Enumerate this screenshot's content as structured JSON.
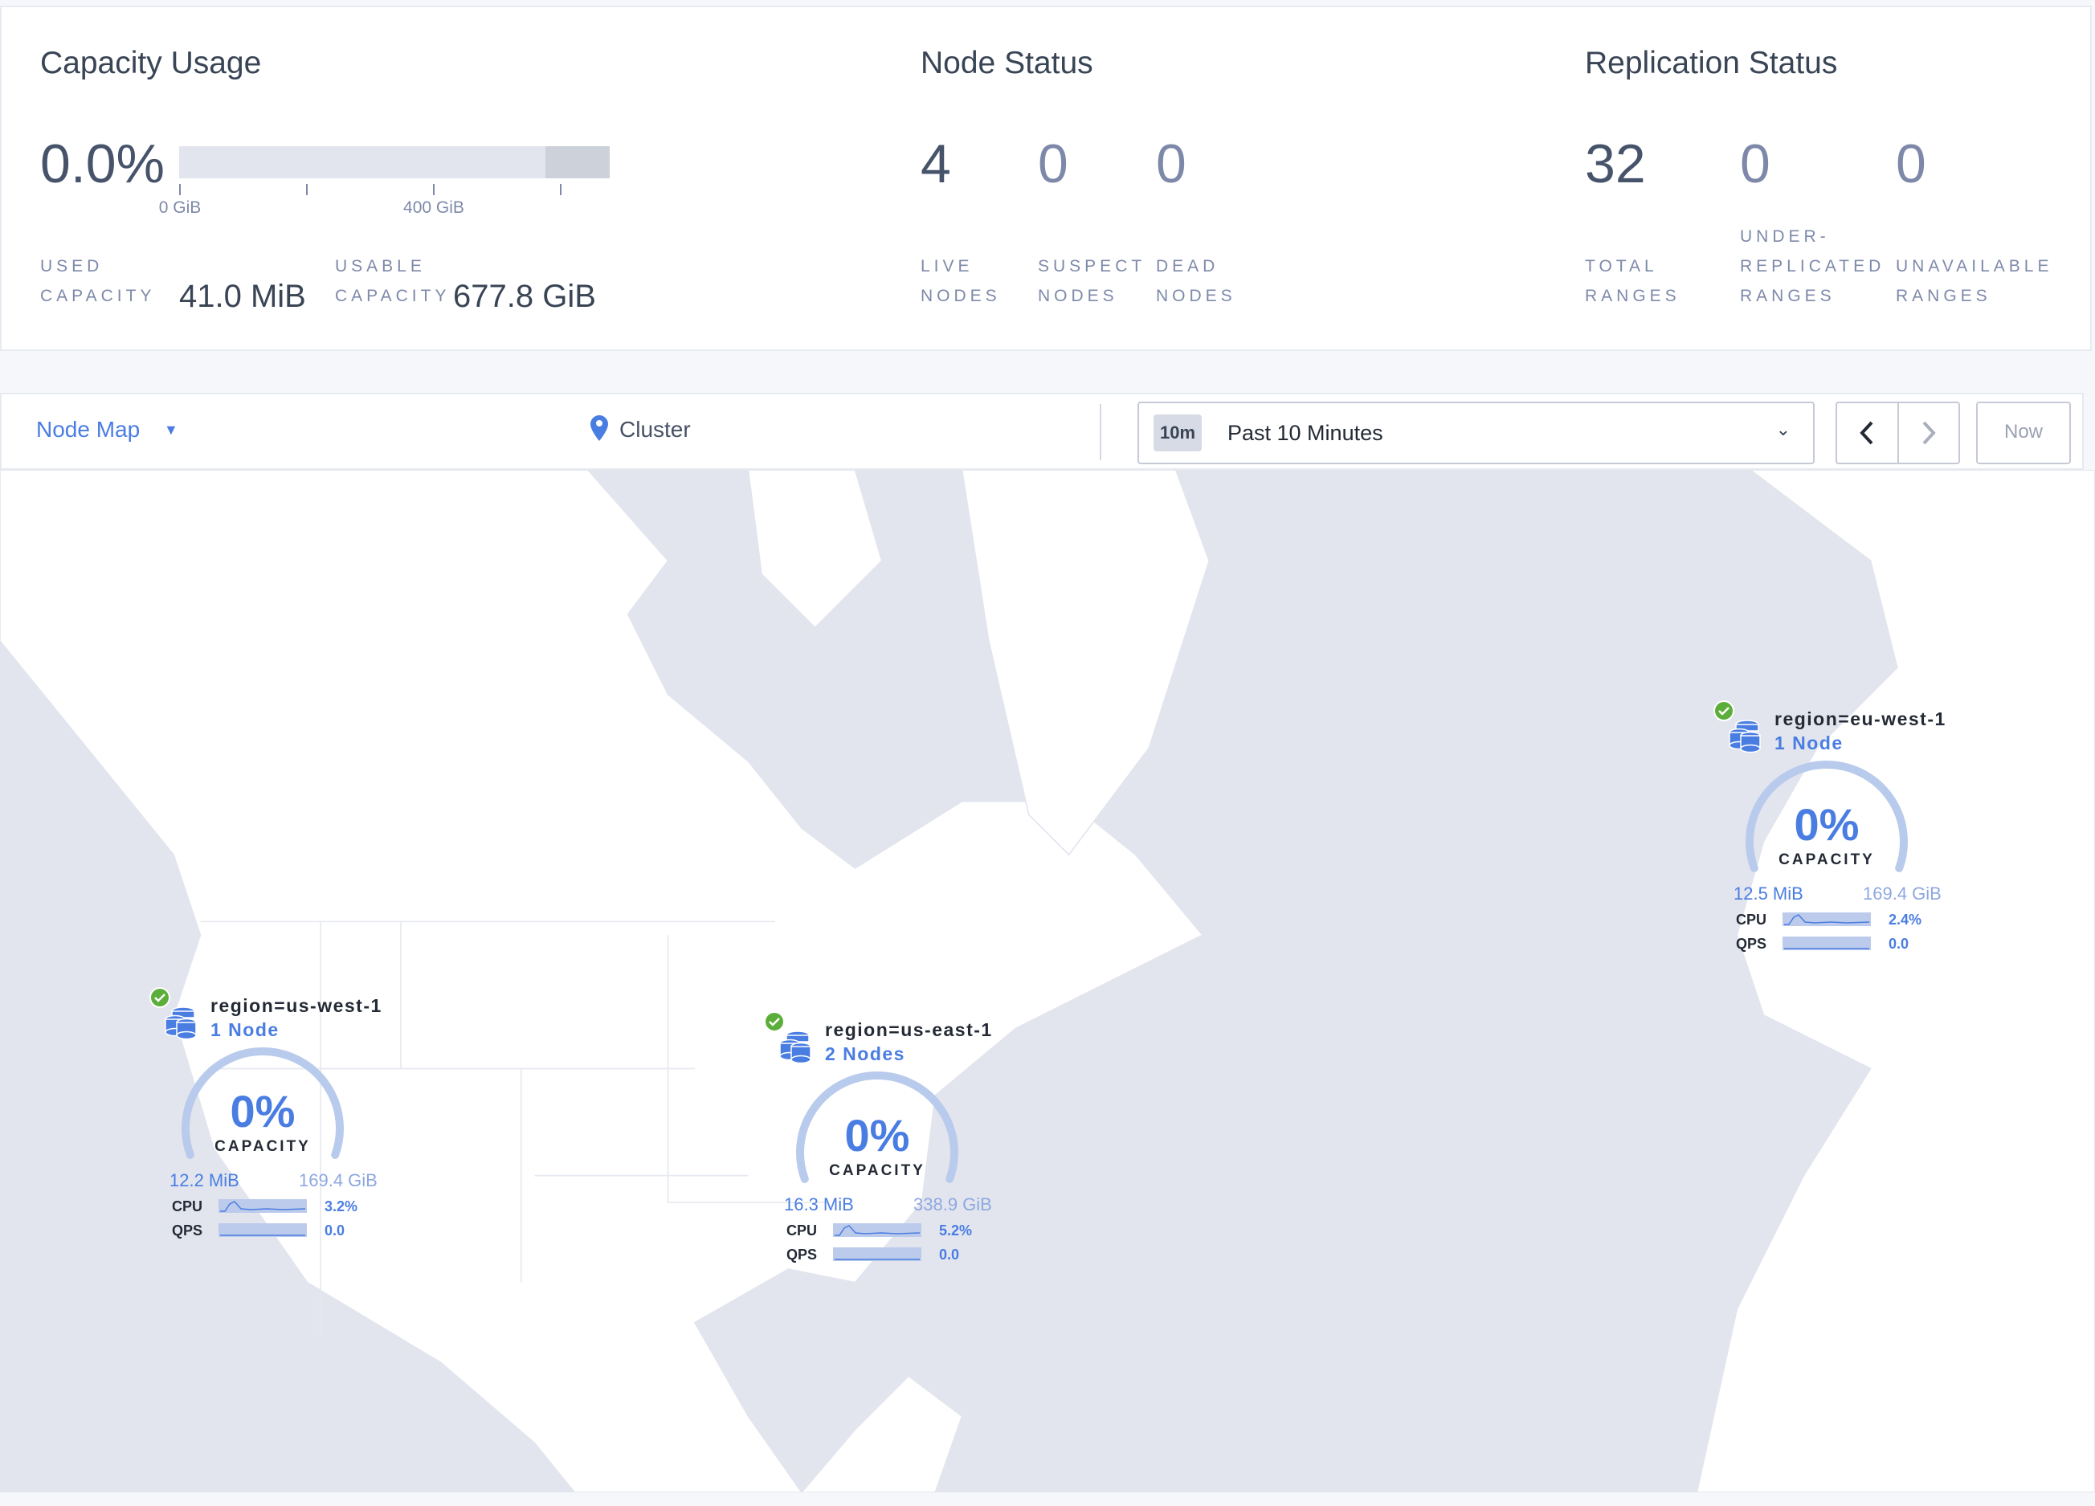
{
  "capacity": {
    "title": "Capacity Usage",
    "percent": "0.0%",
    "used_percent": 0.0,
    "axis_labels": [
      "0 GiB",
      "400 GiB"
    ],
    "used_label": [
      "USED",
      "CAPACITY"
    ],
    "used_value": "41.0 MiB",
    "usable_label": [
      "USABLE",
      "CAPACITY"
    ],
    "usable_value": "677.8 GiB"
  },
  "node_status": {
    "title": "Node Status",
    "stats": [
      {
        "value": "4",
        "label": [
          "LIVE",
          "NODES"
        ]
      },
      {
        "value": "0",
        "label": [
          "SUSPECT",
          "NODES"
        ]
      },
      {
        "value": "0",
        "label": [
          "DEAD",
          "NODES"
        ]
      }
    ]
  },
  "replication": {
    "title": "Replication Status",
    "stats": [
      {
        "value": "32",
        "label": [
          "",
          "TOTAL",
          "RANGES"
        ]
      },
      {
        "value": "0",
        "label": [
          "UNDER-",
          "REPLICATED",
          "RANGES"
        ]
      },
      {
        "value": "0",
        "label": [
          "",
          "UNAVAILABLE",
          "RANGES"
        ]
      }
    ]
  },
  "toolbar": {
    "view": "Node Map",
    "breadcrumb": "Cluster",
    "time_badge": "10m",
    "time_range": "Past 10 Minutes",
    "now": "Now"
  },
  "colors": {
    "accent": "#4a7de2",
    "healthy": "#5cae3a",
    "water": "#e2e5ee",
    "land": "#ffffff"
  },
  "nodes": [
    {
      "region": "region=us-west-1",
      "count": "1 Node",
      "status": "healthy",
      "capacity_pct": "0%",
      "capacity_label": "CAPACITY",
      "used": "12.2 MiB",
      "total": "169.4 GiB",
      "cpu_label": "CPU",
      "cpu": "3.2%",
      "qps_label": "QPS",
      "qps": "0.0"
    },
    {
      "region": "region=us-east-1",
      "count": "2 Nodes",
      "status": "healthy",
      "capacity_pct": "0%",
      "capacity_label": "CAPACITY",
      "used": "16.3 MiB",
      "total": "338.9 GiB",
      "cpu_label": "CPU",
      "cpu": "5.2%",
      "qps_label": "QPS",
      "qps": "0.0"
    },
    {
      "region": "region=eu-west-1",
      "count": "1 Node",
      "status": "healthy",
      "capacity_pct": "0%",
      "capacity_label": "CAPACITY",
      "used": "12.5 MiB",
      "total": "169.4 GiB",
      "cpu_label": "CPU",
      "cpu": "2.4%",
      "qps_label": "QPS",
      "qps": "0.0"
    }
  ]
}
